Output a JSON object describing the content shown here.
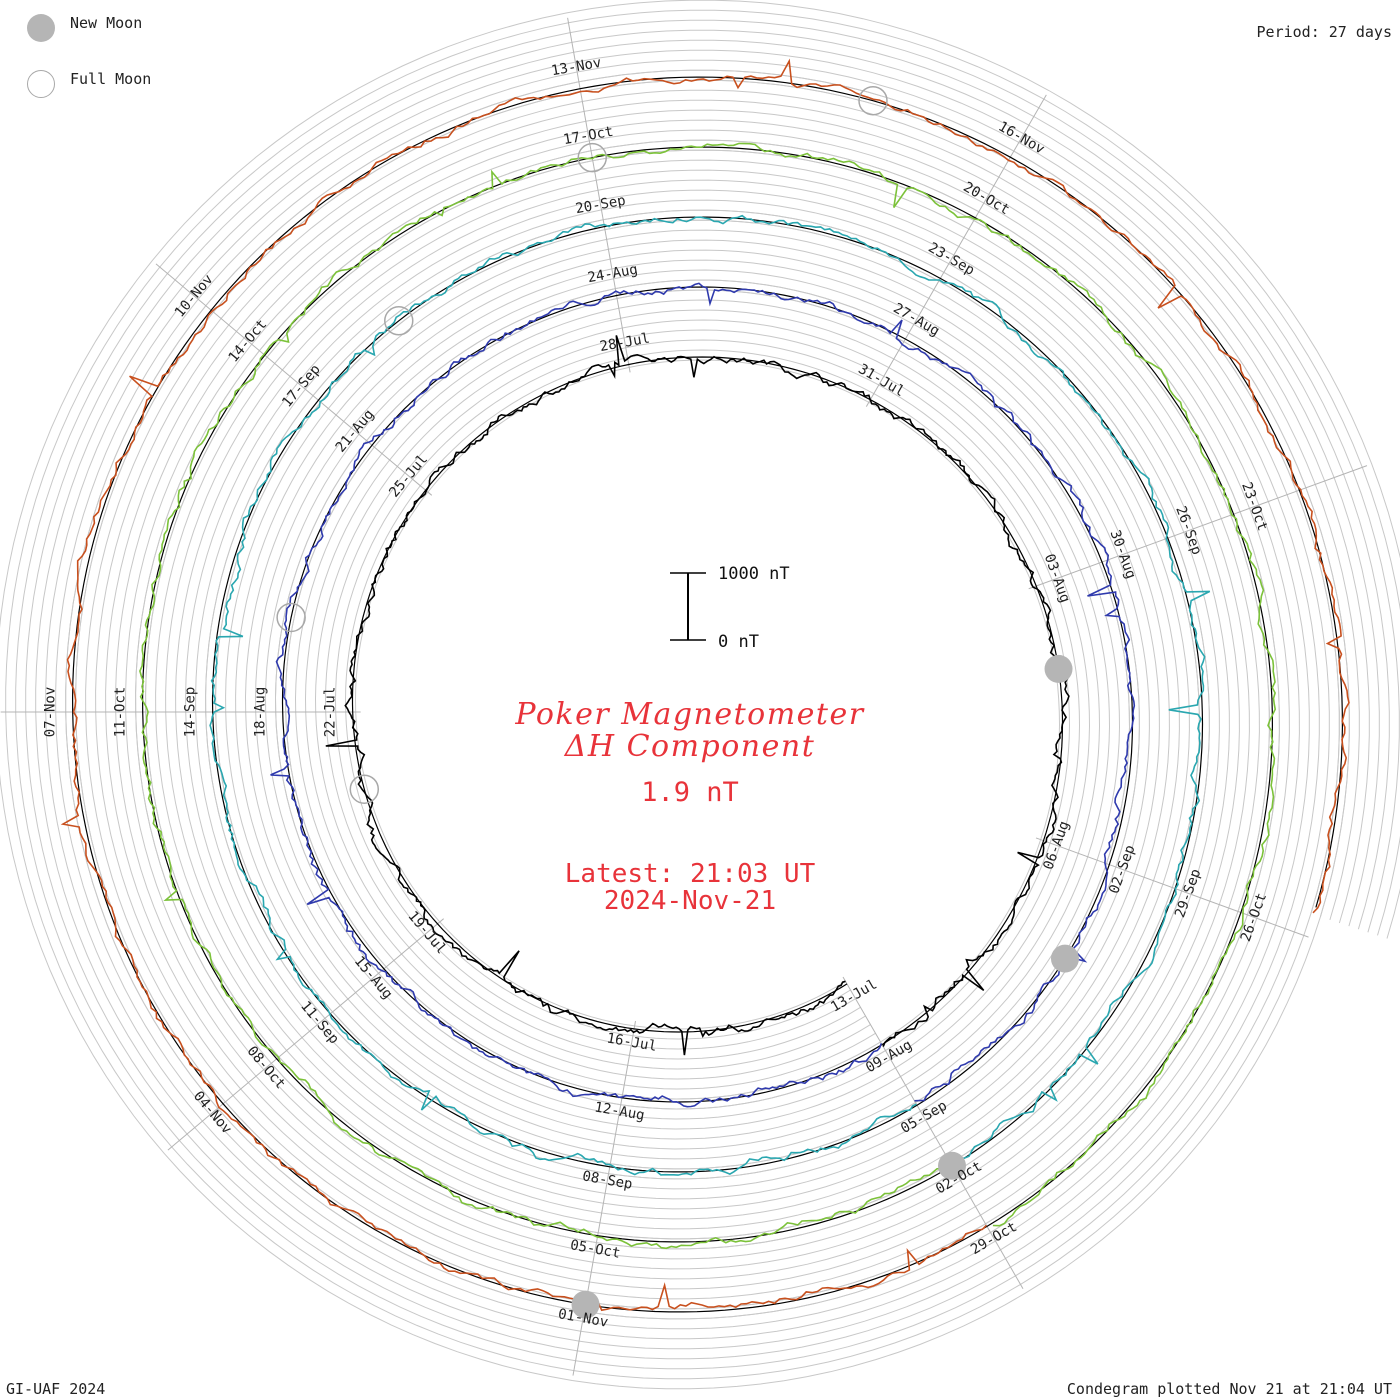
{
  "legend": {
    "new_moon_label": "New Moon",
    "full_moon_label": "Full Moon"
  },
  "period_label": "Period: 27 days",
  "footer_left": "GI-UAF 2024",
  "footer_right": "Condegram plotted Nov 21 at 21:04 UT",
  "title_line1": "Poker Magnetometer",
  "title_line2": "ΔH Component",
  "current_value": "1.9 nT",
  "latest_time": "Latest: 21:03 UT",
  "latest_date": "2024-Nov-21",
  "scale": {
    "top_label": "1000 nT",
    "bottom_label": "0 nT",
    "top_value_nT": 1000,
    "bottom_value_nT": 0
  },
  "colors": {
    "title": "#e8333a",
    "grid": "#c8c8c8",
    "spokes": "#b4b4b4",
    "baseline": "#000000",
    "moon": "#b5b5b5"
  },
  "chart_data": {
    "type": "line",
    "start_date": "2024-Jul-13",
    "end_date": "2024-Nov-21",
    "period_days": 27,
    "series": [
      {
        "color": "#000000",
        "date_labels": [
          "13-Jul",
          "16-Jul",
          "19-Jul",
          "22-Jul",
          "25-Jul",
          "28-Jul",
          "31-Jul",
          "03-Aug",
          "06-Aug",
          "09-Aug"
        ]
      },
      {
        "color": "#2f3aad",
        "date_labels": [
          "12-Aug",
          "15-Aug",
          "18-Aug",
          "21-Aug",
          "24-Aug",
          "27-Aug",
          "30-Aug",
          "02-Sep",
          "05-Sep"
        ]
      },
      {
        "color": "#2aa7b0",
        "date_labels": [
          "08-Sep",
          "11-Sep",
          "14-Sep",
          "17-Sep",
          "20-Sep",
          "23-Sep",
          "26-Sep",
          "29-Sep",
          "02-Oct"
        ]
      },
      {
        "color": "#7cc23a",
        "date_labels": [
          "05-Oct",
          "08-Oct",
          "11-Oct",
          "14-Oct",
          "17-Oct",
          "20-Oct",
          "23-Oct",
          "26-Oct",
          "29-Oct"
        ]
      },
      {
        "color": "#c8501e",
        "date_labels": [
          "01-Nov",
          "04-Nov",
          "07-Nov",
          "10-Nov",
          "13-Nov",
          "16-Nov"
        ]
      }
    ],
    "new_moons": [
      "2024-Aug-04",
      "2024-Sep-03",
      "2024-Oct-02",
      "2024-Nov-01"
    ],
    "full_moons": [
      "2024-Jul-21",
      "2024-Aug-19",
      "2024-Sep-18",
      "2024-Oct-17",
      "2024-Nov-15"
    ]
  }
}
